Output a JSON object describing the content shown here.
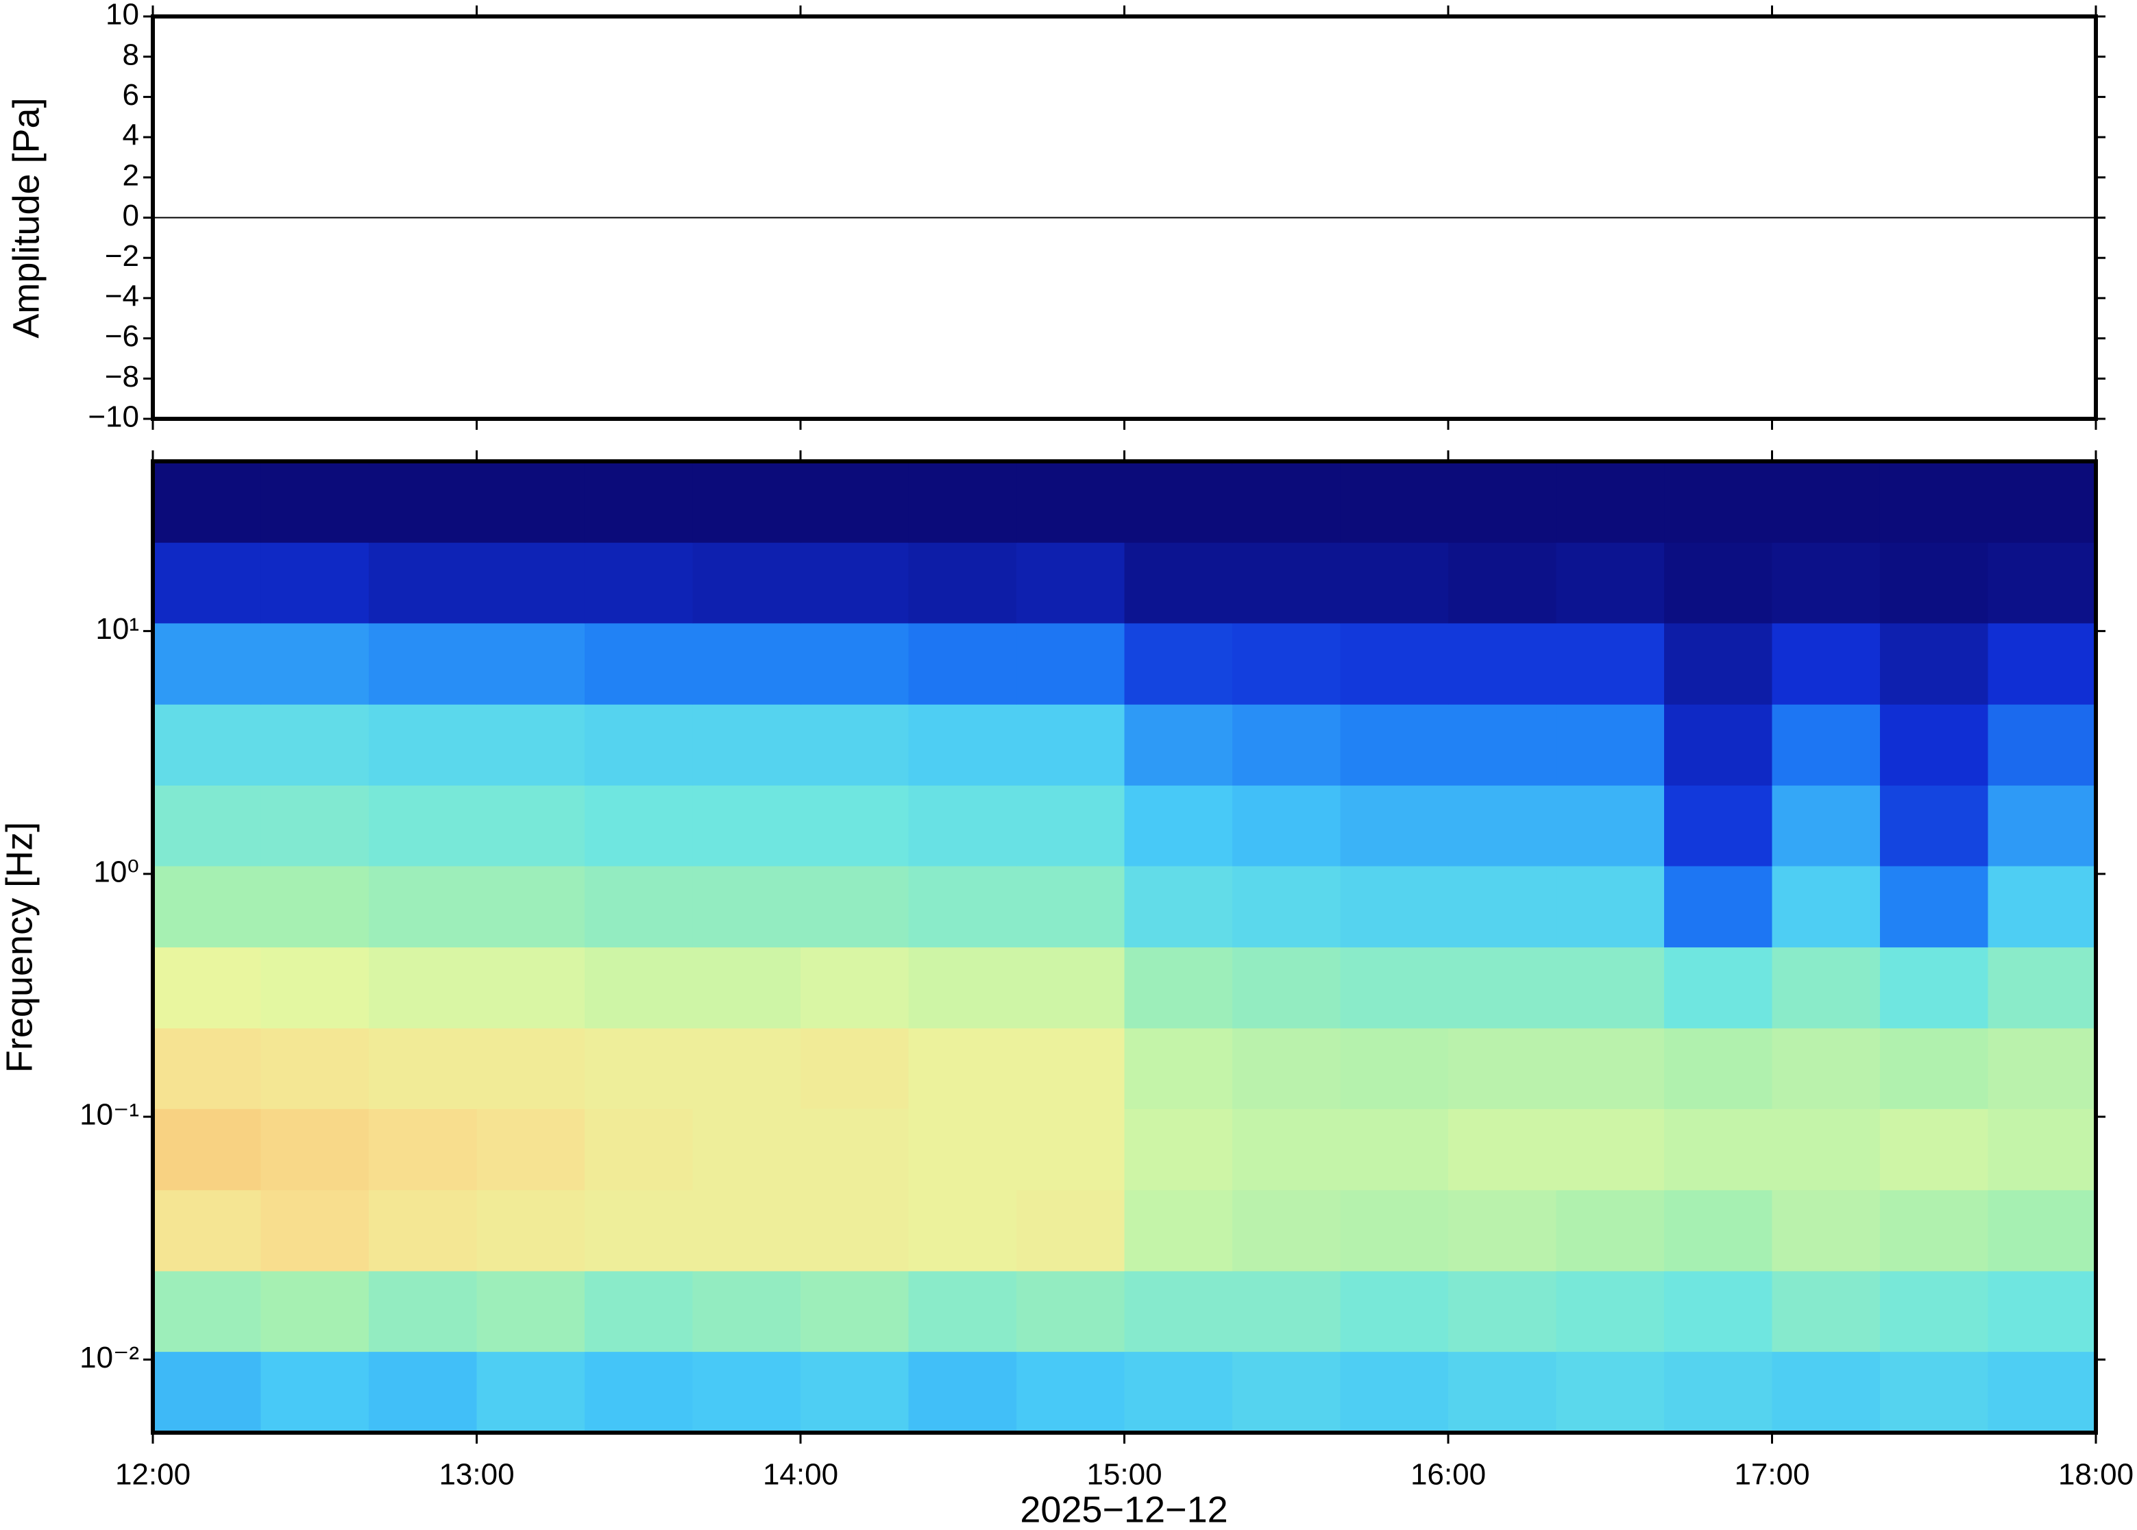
{
  "chart_data": [
    {
      "type": "line",
      "ylabel": "Amplitude [Pa]",
      "x": [
        12,
        12.5,
        13,
        13.5,
        14,
        14.5,
        15,
        15.5,
        16,
        16.5,
        17,
        17.5,
        18
      ],
      "values": [
        0,
        0,
        0,
        0,
        0,
        0,
        0,
        0,
        0,
        0,
        0,
        0,
        0
      ],
      "color": "#000000",
      "xlim": [
        12,
        18
      ],
      "ylim": [
        -10,
        10
      ],
      "yticks": [
        {
          "value": -10,
          "label": "−10"
        },
        {
          "value": -8,
          "label": "−8"
        },
        {
          "value": -6,
          "label": "−6"
        },
        {
          "value": -4,
          "label": "−4"
        },
        {
          "value": -2,
          "label": "−2"
        },
        0,
        2,
        4,
        6,
        8,
        10
      ]
    },
    {
      "type": "heatmap",
      "ylabel": "Frequency [Hz]",
      "xlabel": "2025−12−12",
      "log_y": true,
      "xlim": [
        12,
        18
      ],
      "ylim": [
        0.005,
        50
      ],
      "xticks": [
        {
          "value": 12,
          "label": "12:00"
        },
        {
          "value": 13,
          "label": "13:00"
        },
        {
          "value": 14,
          "label": "14:00"
        },
        {
          "value": 15,
          "label": "15:00"
        },
        {
          "value": 16,
          "label": "16:00"
        },
        {
          "value": 17,
          "label": "17:00"
        },
        {
          "value": 18,
          "label": "18:00"
        }
      ],
      "yticks": [
        {
          "value": 0.01,
          "label": "10⁻²"
        },
        {
          "value": 0.1,
          "label": "10⁻¹"
        },
        {
          "value": 1,
          "label": "10⁰"
        },
        {
          "value": 10,
          "label": "10¹"
        }
      ],
      "xbins": [
        12,
        12.3333,
        12.6667,
        13,
        13.3333,
        13.6667,
        14,
        14.3333,
        14.6667,
        15,
        15.3333,
        15.6667,
        16,
        16.3333,
        16.6667,
        17,
        17.3333,
        17.6667,
        18
      ],
      "ybins": [
        0.005,
        0.0108,
        0.0232,
        0.05,
        0.108,
        0.232,
        0.5,
        1.08,
        2.32,
        5,
        10.8,
        23.2,
        50
      ],
      "clim": [
        0,
        1
      ],
      "colormap": [
        "#0b0b7a",
        "#1030d8",
        "#1e7cf5",
        "#46c8f8",
        "#6fe6e0",
        "#a8f0b0",
        "#e8f8a0",
        "#f8e090",
        "#f7b86a"
      ],
      "values": [
        [
          0.35,
          0.38,
          0.36,
          0.4,
          0.37,
          0.38,
          0.4,
          0.36,
          0.38,
          0.4,
          0.42,
          0.4,
          0.42,
          0.44,
          0.42,
          0.4,
          0.42,
          0.4
        ],
        [
          0.6,
          0.62,
          0.58,
          0.6,
          0.56,
          0.58,
          0.6,
          0.56,
          0.58,
          0.55,
          0.55,
          0.52,
          0.54,
          0.52,
          0.5,
          0.55,
          0.52,
          0.5
        ],
        [
          0.85,
          0.88,
          0.84,
          0.82,
          0.8,
          0.8,
          0.8,
          0.78,
          0.8,
          0.68,
          0.66,
          0.65,
          0.66,
          0.64,
          0.62,
          0.66,
          0.64,
          0.62
        ],
        [
          0.92,
          0.9,
          0.88,
          0.86,
          0.82,
          0.8,
          0.8,
          0.78,
          0.78,
          0.7,
          0.68,
          0.68,
          0.7,
          0.7,
          0.68,
          0.68,
          0.7,
          0.68
        ],
        [
          0.86,
          0.84,
          0.82,
          0.82,
          0.8,
          0.8,
          0.82,
          0.78,
          0.78,
          0.68,
          0.66,
          0.65,
          0.66,
          0.66,
          0.64,
          0.66,
          0.64,
          0.66
        ],
        [
          0.76,
          0.74,
          0.72,
          0.72,
          0.7,
          0.7,
          0.72,
          0.7,
          0.7,
          0.6,
          0.58,
          0.56,
          0.56,
          0.56,
          0.5,
          0.56,
          0.5,
          0.56
        ],
        [
          0.62,
          0.62,
          0.6,
          0.6,
          0.58,
          0.58,
          0.58,
          0.56,
          0.56,
          0.46,
          0.44,
          0.42,
          0.42,
          0.42,
          0.24,
          0.4,
          0.26,
          0.4
        ],
        [
          0.54,
          0.54,
          0.52,
          0.52,
          0.5,
          0.5,
          0.5,
          0.48,
          0.48,
          0.38,
          0.36,
          0.34,
          0.34,
          0.34,
          0.14,
          0.32,
          0.16,
          0.3
        ],
        [
          0.46,
          0.46,
          0.44,
          0.44,
          0.42,
          0.42,
          0.42,
          0.4,
          0.4,
          0.3,
          0.28,
          0.26,
          0.26,
          0.26,
          0.1,
          0.24,
          0.12,
          0.22
        ],
        [
          0.3,
          0.3,
          0.28,
          0.28,
          0.26,
          0.26,
          0.26,
          0.24,
          0.24,
          0.16,
          0.15,
          0.14,
          0.14,
          0.14,
          0.06,
          0.12,
          0.07,
          0.12
        ],
        [
          0.1,
          0.1,
          0.08,
          0.08,
          0.08,
          0.07,
          0.07,
          0.06,
          0.07,
          0.03,
          0.03,
          0.03,
          0.02,
          0.03,
          0.01,
          0.02,
          0.01,
          0.02
        ],
        [
          0,
          0,
          0,
          0,
          0,
          0,
          0,
          0,
          0,
          0,
          0,
          0,
          0,
          0,
          0,
          0,
          0,
          0
        ]
      ]
    }
  ]
}
